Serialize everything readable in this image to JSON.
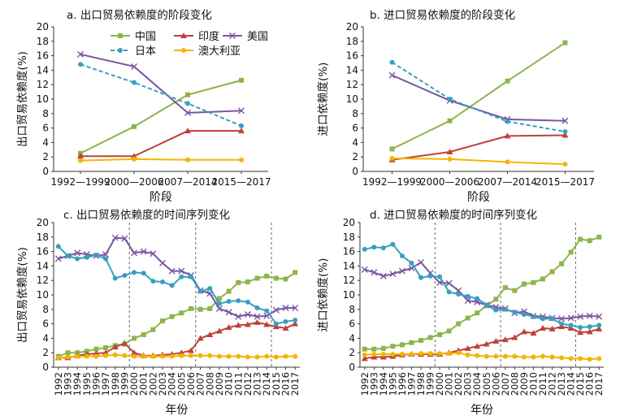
{
  "series_meta": [
    {
      "key": "china",
      "name": "中国",
      "color": "#8DB54A",
      "marker": "square",
      "dash": false
    },
    {
      "key": "india",
      "name": "印度",
      "color": "#C0413A",
      "marker": "triangle",
      "dash": false
    },
    {
      "key": "usa",
      "name": "美国",
      "color": "#7B55A0",
      "marker": "x",
      "dash": false
    },
    {
      "key": "japan",
      "name": "日本",
      "color": "#36A0BF",
      "marker": "circle",
      "dash": true
    },
    {
      "key": "australia",
      "name": "澳大利亚",
      "color": "#F4B400",
      "marker": "circle",
      "dash": false
    }
  ],
  "chart_data": [
    {
      "id": "a",
      "type": "line",
      "title": "a. 出口贸易依赖度的阶段变化",
      "xlabel": "阶段",
      "ylabel": "出口贸易依赖度(%)",
      "categories": [
        "1992—1999",
        "2000—2006",
        "2007—2014",
        "2015—2017"
      ],
      "ylim": [
        0,
        20
      ],
      "yticks": [
        0,
        2,
        4,
        6,
        8,
        10,
        12,
        14,
        16,
        18,
        20
      ],
      "legend": "top",
      "series": [
        {
          "name": "中国",
          "values": [
            2.5,
            6.2,
            10.6,
            12.6
          ]
        },
        {
          "name": "印度",
          "values": [
            2.1,
            2.1,
            5.6,
            5.6
          ]
        },
        {
          "name": "美国",
          "values": [
            16.2,
            14.5,
            8.1,
            8.4
          ]
        },
        {
          "name": "日本",
          "values": [
            14.8,
            12.3,
            9.4,
            6.3
          ]
        },
        {
          "name": "澳大利亚",
          "values": [
            1.5,
            1.7,
            1.6,
            1.6
          ]
        }
      ]
    },
    {
      "id": "b",
      "type": "line",
      "title": "b. 进口贸易依赖度的阶段变化",
      "xlabel": "阶段",
      "ylabel": "进口依赖度(%)",
      "categories": [
        "1992—1999",
        "2000—2006",
        "2007—2014",
        "2015—2017"
      ],
      "ylim": [
        0,
        20
      ],
      "yticks": [
        0,
        2,
        4,
        6,
        8,
        10,
        12,
        14,
        16,
        18,
        20
      ],
      "series": [
        {
          "name": "中国",
          "values": [
            3.1,
            7.0,
            12.5,
            17.8
          ]
        },
        {
          "name": "印度",
          "values": [
            1.6,
            2.7,
            4.9,
            5.0
          ]
        },
        {
          "name": "美国",
          "values": [
            13.3,
            9.8,
            7.2,
            7.0
          ]
        },
        {
          "name": "日本",
          "values": [
            15.1,
            10.0,
            6.9,
            5.5
          ]
        },
        {
          "name": "澳大利亚",
          "values": [
            1.8,
            1.7,
            1.3,
            1.0
          ]
        }
      ]
    },
    {
      "id": "c",
      "type": "line",
      "title": "c. 出口贸易依赖度的时间序列变化",
      "xlabel": "年份",
      "ylabel": "出口贸易依赖度(%)",
      "categories": [
        "1992",
        "1993",
        "1994",
        "1995",
        "1996",
        "1997",
        "1998",
        "1999",
        "2000",
        "2001",
        "2002",
        "2003",
        "2004",
        "2005",
        "2006",
        "2007",
        "2008",
        "2009",
        "2010",
        "2011",
        "2012",
        "2013",
        "2014",
        "2015",
        "2016",
        "2017"
      ],
      "ylim": [
        0,
        20
      ],
      "yticks": [
        0,
        2,
        4,
        6,
        8,
        10,
        12,
        14,
        16,
        18,
        20
      ],
      "vlines": [
        "1999.5",
        "2006.5",
        "2014.5"
      ],
      "series": [
        {
          "name": "中国",
          "values": [
            1.5,
            2.0,
            2.0,
            2.2,
            2.5,
            2.7,
            3.0,
            3.2,
            4.0,
            4.5,
            5.2,
            6.4,
            7.0,
            7.5,
            8.1,
            8.0,
            8.1,
            9.5,
            10.5,
            11.7,
            11.8,
            12.3,
            12.6,
            12.3,
            12.2,
            13.1
          ]
        },
        {
          "name": "印度",
          "values": [
            1.3,
            1.3,
            1.6,
            1.8,
            1.9,
            2.0,
            2.8,
            3.3,
            2.0,
            1.6,
            1.6,
            1.7,
            1.8,
            2.0,
            2.3,
            4.0,
            4.5,
            5.0,
            5.5,
            5.8,
            5.9,
            6.2,
            5.9,
            5.6,
            5.4,
            6.0
          ]
        },
        {
          "name": "美国",
          "values": [
            15.0,
            15.4,
            15.8,
            15.6,
            15.4,
            15.6,
            17.9,
            17.8,
            15.8,
            16.0,
            15.7,
            14.4,
            13.3,
            13.3,
            12.7,
            10.6,
            10.2,
            8.1,
            7.6,
            7.0,
            7.3,
            7.0,
            7.1,
            7.9,
            8.2,
            8.2
          ]
        },
        {
          "name": "日本",
          "values": [
            16.7,
            15.4,
            15.0,
            15.2,
            15.5,
            15.0,
            12.3,
            12.7,
            13.1,
            13.0,
            11.9,
            11.8,
            11.3,
            12.5,
            12.5,
            10.5,
            10.9,
            8.8,
            9.1,
            9.2,
            9.0,
            8.2,
            7.8,
            6.0,
            6.3,
            6.5
          ]
        },
        {
          "name": "澳大利亚",
          "values": [
            1.3,
            1.4,
            1.5,
            1.5,
            1.5,
            1.6,
            1.7,
            1.6,
            1.5,
            1.5,
            1.5,
            1.5,
            1.5,
            1.6,
            1.6,
            1.6,
            1.6,
            1.5,
            1.5,
            1.5,
            1.4,
            1.4,
            1.5,
            1.4,
            1.5,
            1.5
          ]
        }
      ]
    },
    {
      "id": "d",
      "type": "line",
      "title": "d. 进口贸易依赖度的时间序列变化",
      "xlabel": "年份",
      "ylabel": "进口依赖度(%)",
      "categories": [
        "1992",
        "1993",
        "1994",
        "1995",
        "1996",
        "1997",
        "1998",
        "1999",
        "2000",
        "2001",
        "2002",
        "2003",
        "2004",
        "2005",
        "2006",
        "2007",
        "2008",
        "2009",
        "2010",
        "2011",
        "2012",
        "2013",
        "2014",
        "2015",
        "2016",
        "2017"
      ],
      "ylim": [
        0,
        20
      ],
      "yticks": [
        0,
        2,
        4,
        6,
        8,
        10,
        12,
        14,
        16,
        18,
        20
      ],
      "vlines": [
        "1999.5",
        "2006.5",
        "2014.5"
      ],
      "series": [
        {
          "name": "中国",
          "values": [
            2.5,
            2.5,
            2.6,
            2.9,
            3.1,
            3.4,
            3.7,
            4.1,
            4.5,
            5.0,
            6.0,
            6.8,
            7.5,
            8.5,
            9.4,
            11.0,
            10.6,
            11.5,
            11.7,
            12.2,
            13.2,
            14.3,
            15.9,
            17.7,
            17.5,
            18.0
          ]
        },
        {
          "name": "印度",
          "values": [
            1.2,
            1.4,
            1.4,
            1.5,
            1.7,
            1.8,
            1.8,
            1.8,
            1.8,
            2.0,
            2.3,
            2.6,
            2.9,
            3.2,
            3.6,
            3.8,
            4.1,
            4.9,
            4.7,
            5.4,
            5.3,
            5.6,
            5.4,
            4.8,
            4.9,
            5.3
          ]
        },
        {
          "name": "美国",
          "values": [
            13.5,
            13.1,
            12.6,
            12.9,
            13.3,
            13.7,
            14.5,
            13.0,
            11.7,
            11.6,
            10.6,
            9.2,
            9.0,
            8.6,
            8.3,
            8.1,
            7.5,
            7.7,
            7.1,
            7.0,
            6.8,
            6.7,
            6.8,
            7.0,
            7.1,
            7.0
          ]
        },
        {
          "name": "日本",
          "values": [
            16.3,
            16.6,
            16.5,
            17.0,
            15.4,
            14.4,
            12.4,
            12.6,
            12.5,
            10.4,
            10.1,
            9.8,
            9.5,
            8.6,
            7.9,
            8.0,
            7.6,
            7.3,
            7.0,
            6.7,
            6.7,
            6.0,
            5.8,
            5.5,
            5.6,
            5.8
          ]
        },
        {
          "name": "澳大利亚",
          "values": [
            1.7,
            1.8,
            1.8,
            1.8,
            1.8,
            1.8,
            1.9,
            1.9,
            1.9,
            1.9,
            2.0,
            1.7,
            1.6,
            1.5,
            1.5,
            1.5,
            1.5,
            1.4,
            1.4,
            1.5,
            1.4,
            1.3,
            1.2,
            1.2,
            1.1,
            1.2
          ]
        }
      ]
    }
  ]
}
